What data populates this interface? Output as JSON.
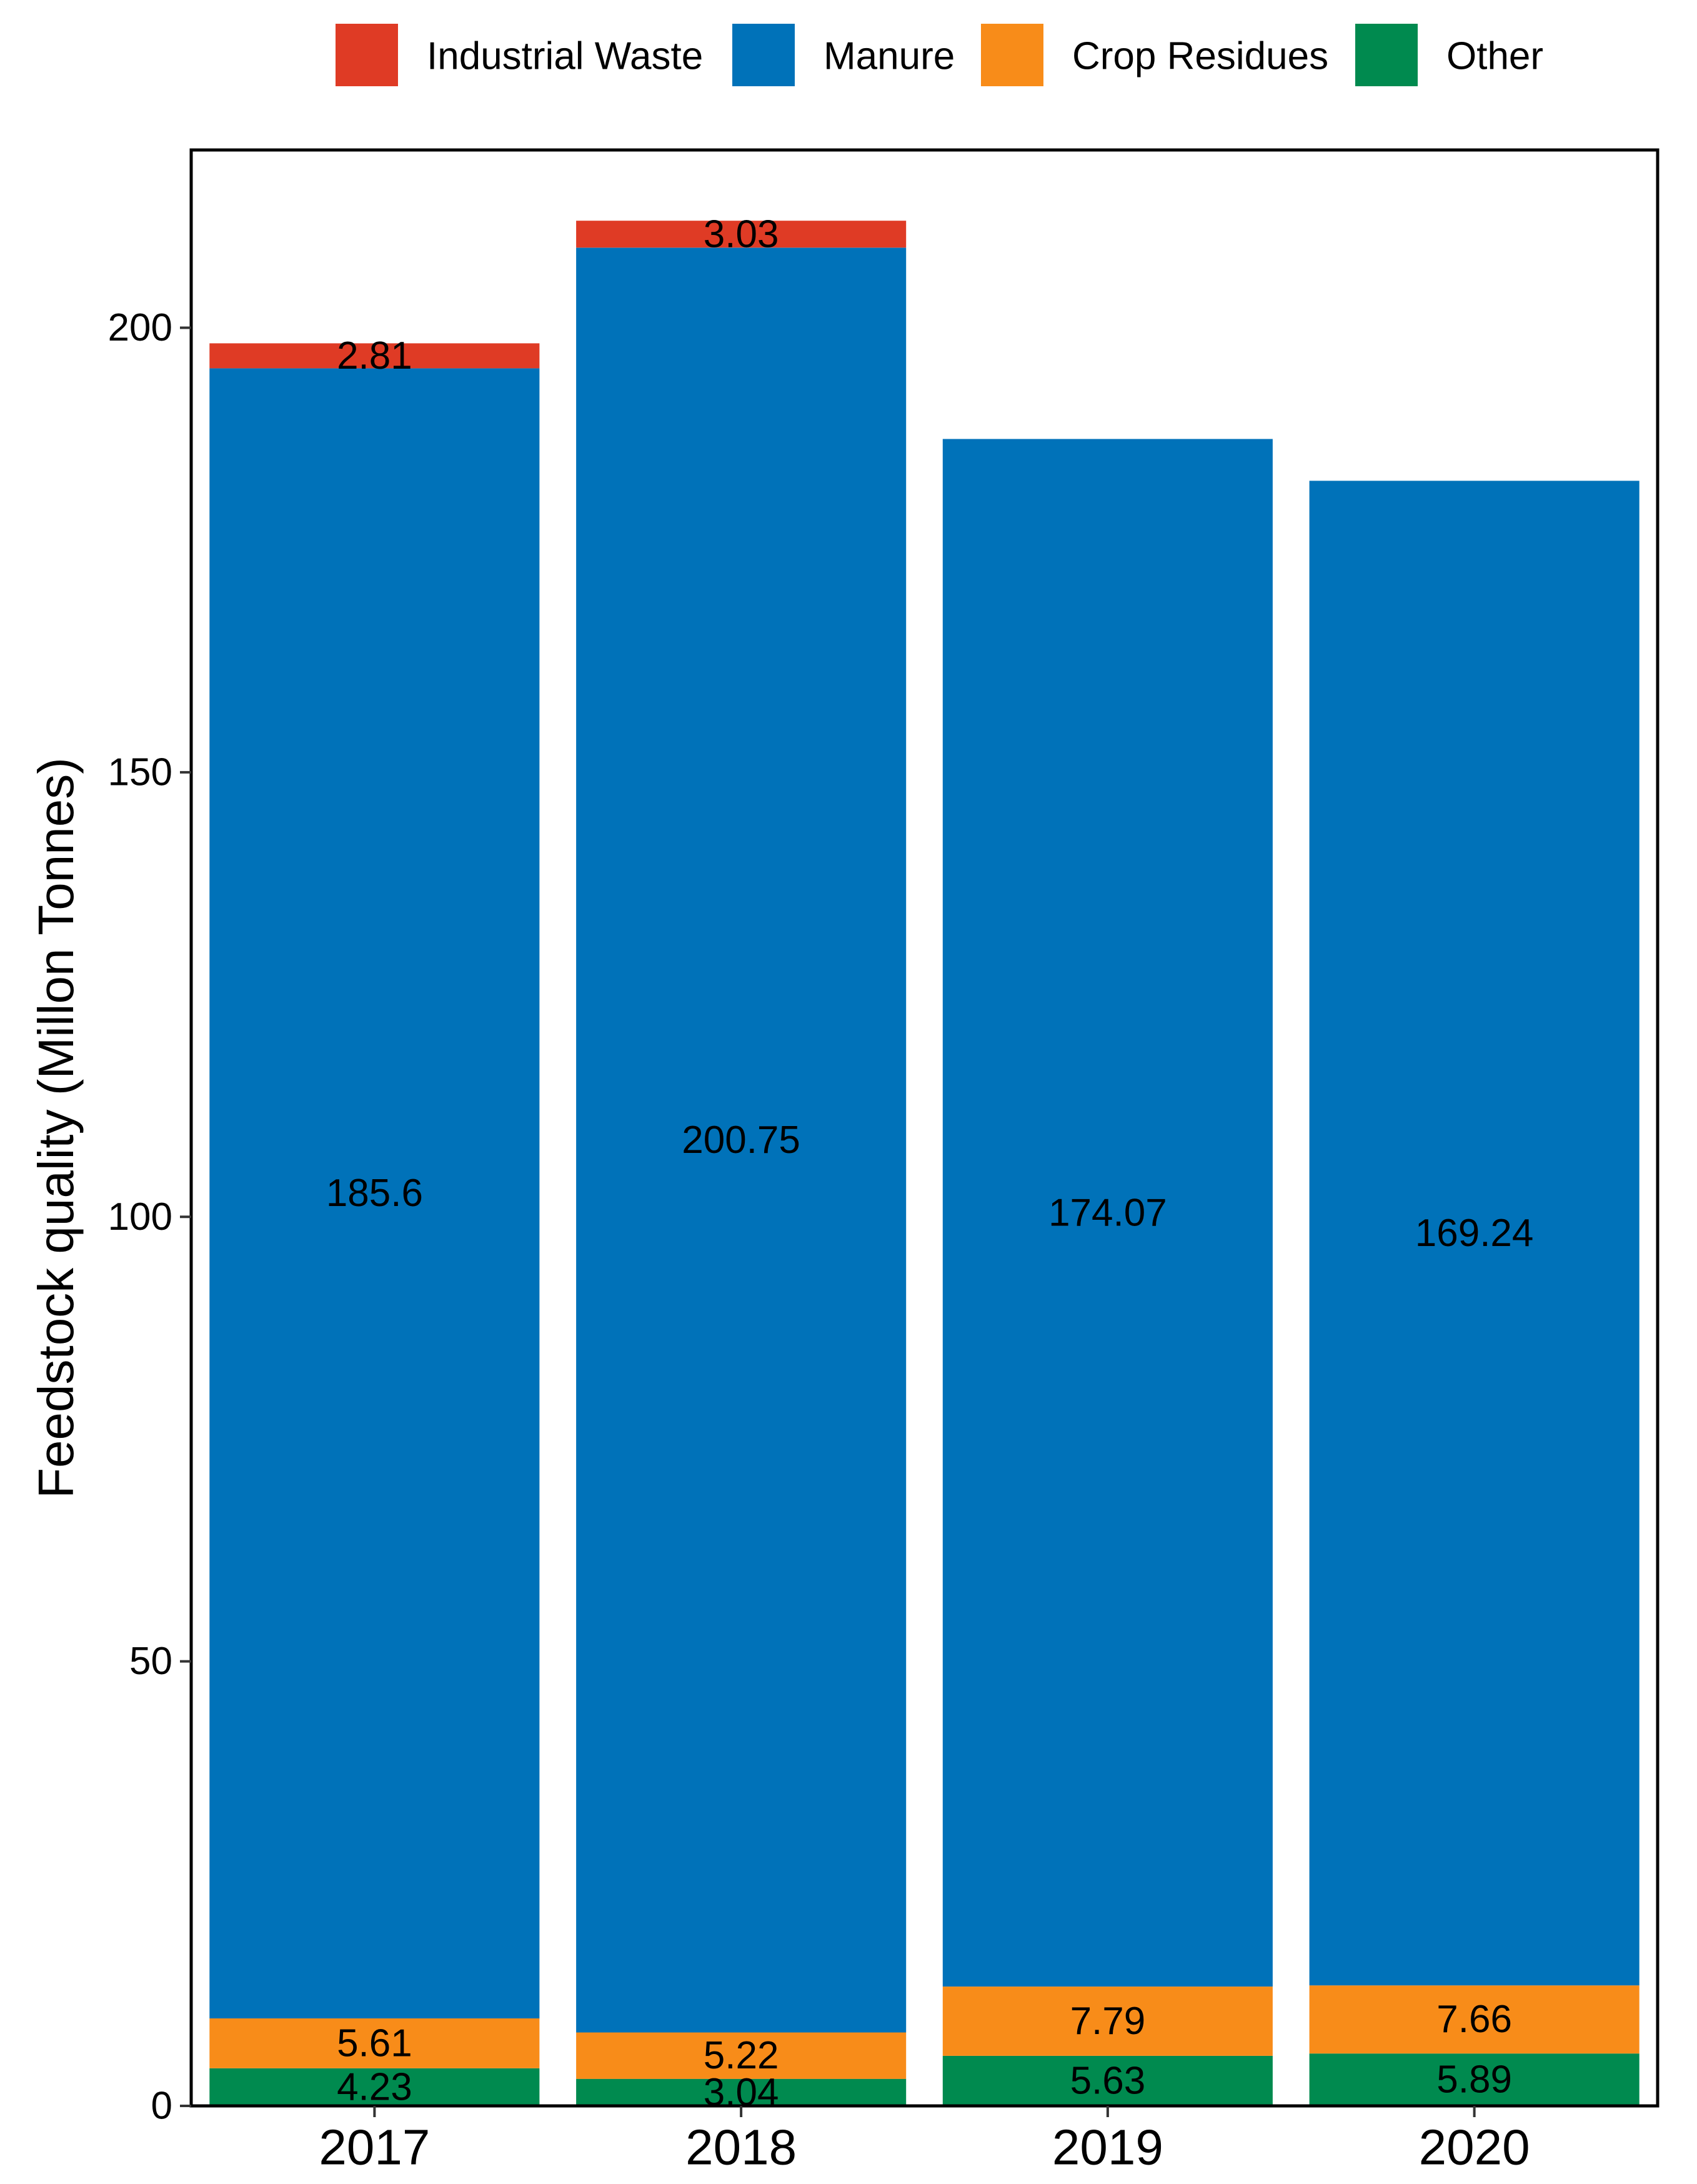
{
  "chart_data": {
    "type": "bar",
    "stacked": true,
    "title": "",
    "xlabel": "",
    "ylabel": "Feedstock quality (Millon Tonnes)",
    "categories": [
      "2017",
      "2018",
      "2019",
      "2020"
    ],
    "ylim": [
      0,
      220
    ],
    "yticks": [
      0,
      50,
      100,
      150,
      200
    ],
    "grid": false,
    "legend_position": "top",
    "legend_order": [
      "Industrial Waste",
      "Manure",
      "Crop Residues",
      "Other"
    ],
    "stack_order": [
      "Other",
      "Crop Residues",
      "Manure",
      "Industrial Waste"
    ],
    "series": [
      {
        "name": "Industrial Waste",
        "color": "#DF3B25",
        "values": [
          2.81,
          3.03,
          0,
          0
        ],
        "labels": [
          "2.81",
          "3.03",
          "",
          ""
        ]
      },
      {
        "name": "Manure",
        "color": "#0072B9",
        "values": [
          185.6,
          200.75,
          174.07,
          169.24
        ],
        "labels": [
          "185.6",
          "200.75",
          "174.07",
          "169.24"
        ]
      },
      {
        "name": "Crop Residues",
        "color": "#F88C19",
        "values": [
          5.61,
          5.22,
          7.79,
          7.66
        ],
        "labels": [
          "5.61",
          "5.22",
          "7.79",
          "7.66"
        ]
      },
      {
        "name": "Other",
        "color": "#008A4F",
        "values": [
          4.23,
          3.04,
          5.63,
          5.89
        ],
        "labels": [
          "4.23",
          "3.04",
          "5.63",
          "5.89"
        ]
      }
    ]
  }
}
